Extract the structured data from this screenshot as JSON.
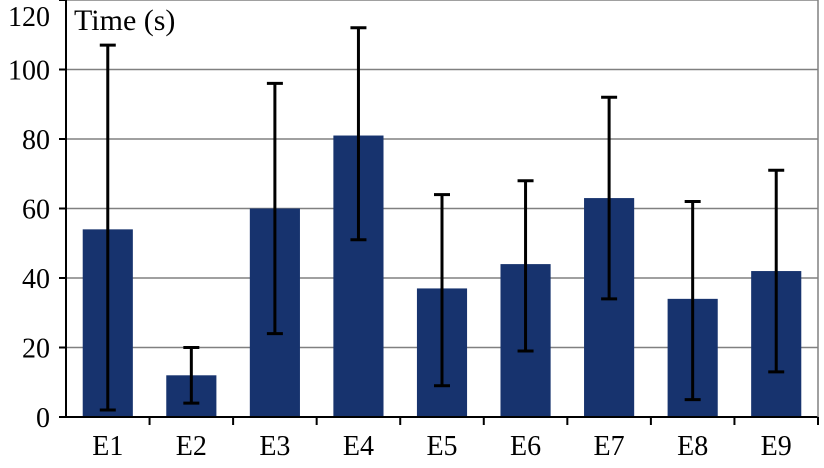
{
  "chart_data": {
    "type": "bar",
    "ylabel": "Time (s)",
    "categories": [
      "E1",
      "E2",
      "E3",
      "E4",
      "E5",
      "E6",
      "E7",
      "E8",
      "E9"
    ],
    "values": [
      54,
      12,
      60,
      81,
      37,
      44,
      63,
      34,
      42
    ],
    "error_low": [
      2,
      4,
      24,
      51,
      9,
      19,
      34,
      5,
      13
    ],
    "error_high": [
      107,
      20,
      96,
      112,
      64,
      68,
      92,
      62,
      71
    ],
    "yticks": [
      0,
      20,
      40,
      60,
      80,
      100,
      120
    ],
    "ylim": [
      0,
      120
    ],
    "grid": true,
    "colors": {
      "bar": "#17336e",
      "grid": "#808080",
      "axis": "#000000",
      "error": "#000000"
    }
  }
}
